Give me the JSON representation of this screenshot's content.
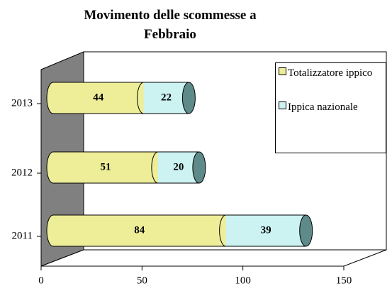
{
  "chart_data": {
    "type": "bar3d",
    "orientation": "horizontal",
    "stacked": true,
    "title": "Movimento delle scommesse a Febbraio",
    "categories": [
      "2013",
      "2012",
      "2011"
    ],
    "series": [
      {
        "name": "Totalizzatore ippico",
        "color": "#eeee99",
        "values": [
          44,
          51,
          84
        ]
      },
      {
        "name": "Ippica nazionale",
        "color": "#ccf2f2",
        "values": [
          22,
          20,
          39
        ]
      }
    ],
    "xlim": [
      0,
      150
    ],
    "xticks": [
      0,
      50,
      100,
      150
    ],
    "legend": "top-right"
  }
}
